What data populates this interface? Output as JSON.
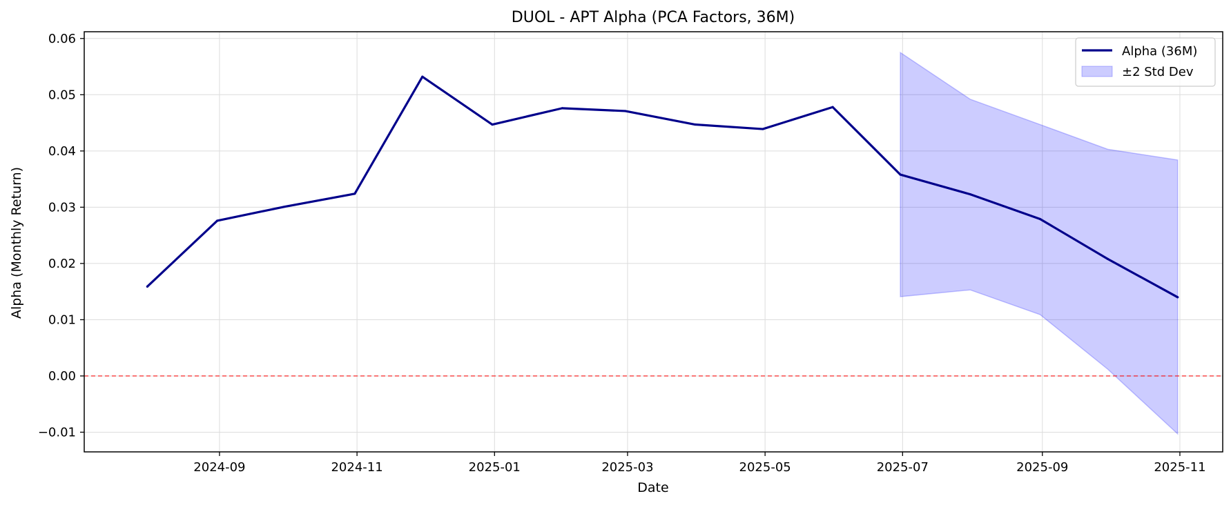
{
  "chart_data": {
    "type": "line",
    "title": "DUOL - APT Alpha (PCA Factors, 36M)",
    "xlabel": "Date",
    "ylabel": "Alpha (Monthly Return)",
    "xlim": [
      "2024-07-03",
      "2025-11-20"
    ],
    "ylim": [
      -0.0135,
      0.0612
    ],
    "x_ticks": [
      "2024-09",
      "2024-11",
      "2025-01",
      "2025-03",
      "2025-05",
      "2025-07",
      "2025-09",
      "2025-11"
    ],
    "y_ticks": [
      "-0.01",
      "0.00",
      "0.01",
      "0.02",
      "0.03",
      "0.04",
      "0.05",
      "0.06"
    ],
    "grid": true,
    "legend_position": "top-right",
    "series": [
      {
        "name": "Alpha (36M)",
        "color": "#00008b",
        "x": [
          "2024-07-31",
          "2024-08-31",
          "2024-09-30",
          "2024-10-31",
          "2024-11-30",
          "2024-12-31",
          "2025-01-31",
          "2025-02-28",
          "2025-03-31",
          "2025-04-30",
          "2025-05-31",
          "2025-06-30",
          "2025-07-31",
          "2025-08-31",
          "2025-09-30",
          "2025-10-31"
        ],
        "y": [
          0.0159,
          0.0276,
          0.0301,
          0.0324,
          0.0532,
          0.0447,
          0.0476,
          0.0471,
          0.0447,
          0.0439,
          0.0478,
          0.0358,
          0.0323,
          0.0279,
          0.0208,
          0.014
        ]
      }
    ],
    "band": {
      "name": "±2 Std Dev",
      "color": "#0000ff",
      "x": [
        "2025-06-30",
        "2025-07-31",
        "2025-08-31",
        "2025-09-30",
        "2025-10-31"
      ],
      "lower": [
        0.0141,
        0.0153,
        0.0109,
        0.0012,
        -0.0103
      ],
      "upper": [
        0.0575,
        0.0492,
        0.0447,
        0.0403,
        0.0384
      ]
    },
    "reference_line": {
      "y": 0.0,
      "color": "#ff0000",
      "style": "dashed"
    }
  }
}
